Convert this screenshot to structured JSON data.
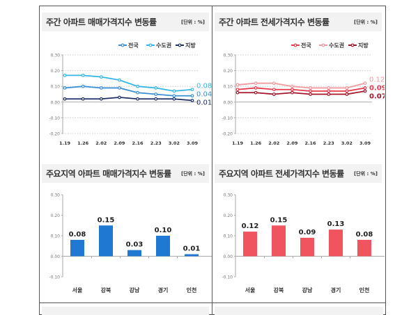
{
  "chart_data": [
    {
      "type": "line",
      "title": "주간 아파트 매매가격지수 변동률",
      "unit": "[단위 : %]",
      "categories": [
        "1.19",
        "1.26",
        "2.02",
        "2.09",
        "2.16",
        "2.23",
        "3.02",
        "3.09"
      ],
      "ylim": [
        -0.2,
        0.3
      ],
      "yticks": [
        "0.30",
        "0.20",
        "0.10",
        "0.00",
        "-0.10",
        "-0.20"
      ],
      "grid": true,
      "legend": "top-right",
      "series": [
        {
          "name": "전국",
          "color": "#3a8fd6",
          "values": [
            0.09,
            0.1,
            0.09,
            0.09,
            0.06,
            0.05,
            0.04,
            0.04
          ],
          "end_label": "0.04"
        },
        {
          "name": "수도권",
          "color": "#35b6e8",
          "values": [
            0.17,
            0.17,
            0.16,
            0.14,
            0.1,
            0.09,
            0.07,
            0.08
          ],
          "end_label": "0.08"
        },
        {
          "name": "지방",
          "color": "#1d2f66",
          "values": [
            0.02,
            0.02,
            0.02,
            0.03,
            0.02,
            0.02,
            0.02,
            0.01
          ],
          "end_label": "0.01"
        }
      ]
    },
    {
      "type": "line",
      "title": "주간 아파트 전세가격지수 변동률",
      "unit": "[단위 : %]",
      "categories": [
        "1.19",
        "1.26",
        "2.02",
        "2.09",
        "2.16",
        "2.23",
        "3.02",
        "3.09"
      ],
      "ylim": [
        -0.2,
        0.3
      ],
      "yticks": [
        "0.30",
        "0.20",
        "0.10",
        "0.00",
        "-0.10",
        "-0.20"
      ],
      "grid": true,
      "legend": "top-right",
      "series": [
        {
          "name": "전국",
          "color": "#e8384a",
          "values": [
            0.08,
            0.09,
            0.08,
            0.08,
            0.07,
            0.07,
            0.07,
            0.09
          ],
          "end_label": "0.09"
        },
        {
          "name": "수도권",
          "color": "#f29aa0",
          "values": [
            0.11,
            0.12,
            0.12,
            0.1,
            0.09,
            0.09,
            0.09,
            0.12
          ],
          "end_label": "0.12"
        },
        {
          "name": "지방",
          "color": "#a3162a",
          "values": [
            0.06,
            0.06,
            0.05,
            0.06,
            0.05,
            0.05,
            0.05,
            0.07
          ],
          "end_label": "0.07"
        }
      ]
    },
    {
      "type": "bar",
      "title": "주요지역 아파트 매매가격지수 변동률",
      "unit": "[단위 : %]",
      "categories": [
        "서울",
        "강북",
        "강남",
        "경기",
        "인천"
      ],
      "values": [
        0.08,
        0.15,
        0.03,
        0.1,
        0.01
      ],
      "labels": [
        "0.08",
        "0.15",
        "0.03",
        "0.10",
        "0.01"
      ],
      "ylim": [
        -0.1,
        0.3
      ],
      "yticks": [
        "0.30",
        "0.20",
        "0.10",
        "0.00",
        "-0.10"
      ],
      "color": "#1f78d1"
    },
    {
      "type": "bar",
      "title": "주요지역 아파트 전세가격지수 변동률",
      "unit": "[단위 : %]",
      "categories": [
        "서울",
        "강북",
        "강남",
        "경기",
        "인천"
      ],
      "values": [
        0.12,
        0.15,
        0.09,
        0.13,
        0.08
      ],
      "labels": [
        "0.12",
        "0.15",
        "0.09",
        "0.13",
        "0.08"
      ],
      "ylim": [
        -0.1,
        0.3
      ],
      "yticks": [
        "0.30",
        "0.20",
        "0.10",
        "0.00",
        "-0.10"
      ],
      "color": "#f0555f"
    }
  ]
}
